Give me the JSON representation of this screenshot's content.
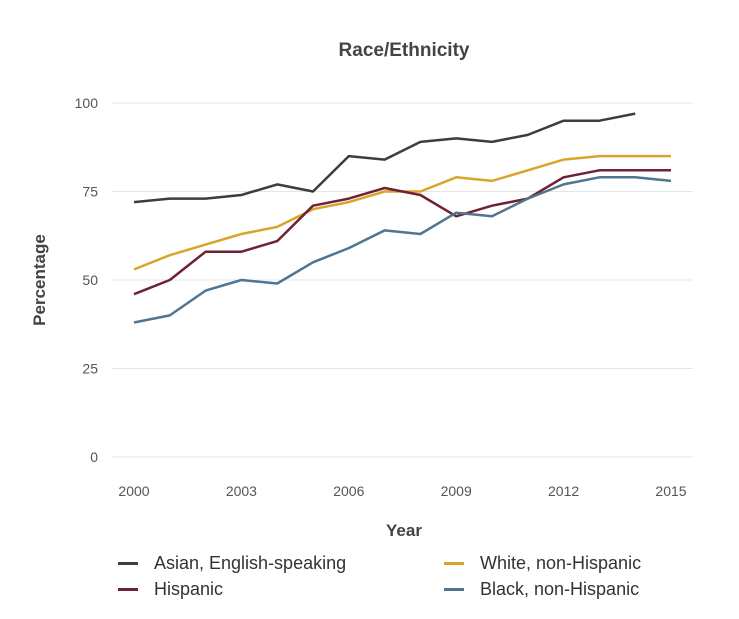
{
  "chart_data": {
    "type": "line",
    "title": "Race/Ethnicity",
    "xlabel": "Year",
    "ylabel": "Percentage",
    "xlim": [
      2000,
      2015
    ],
    "ylim": [
      0,
      100
    ],
    "x_ticks": [
      2000,
      2003,
      2006,
      2009,
      2012,
      2015
    ],
    "y_ticks": [
      0,
      25,
      50,
      75,
      100
    ],
    "grid": "horizontal",
    "legend_position": "bottom",
    "x": [
      2000,
      2001,
      2002,
      2003,
      2004,
      2005,
      2006,
      2007,
      2008,
      2009,
      2010,
      2011,
      2012,
      2013,
      2014,
      2015
    ],
    "series": [
      {
        "name": "Asian, English-speaking",
        "color": "#3d3d3d",
        "values": [
          72,
          73,
          73,
          74,
          77,
          75,
          85,
          84,
          89,
          90,
          89,
          91,
          95,
          95,
          97,
          null
        ]
      },
      {
        "name": "White, non-Hispanic",
        "color": "#d8a52b",
        "values": [
          53,
          57,
          60,
          63,
          65,
          70,
          72,
          75,
          75,
          79,
          78,
          81,
          84,
          85,
          85,
          85
        ]
      },
      {
        "name": "Hispanic",
        "color": "#6e2233",
        "values": [
          46,
          50,
          58,
          58,
          61,
          71,
          73,
          76,
          74,
          68,
          71,
          73,
          79,
          81,
          81,
          81
        ]
      },
      {
        "name": "Black, non-Hispanic",
        "color": "#4f7590",
        "values": [
          38,
          40,
          47,
          50,
          49,
          55,
          59,
          64,
          63,
          69,
          68,
          73,
          77,
          79,
          79,
          78
        ]
      }
    ]
  }
}
